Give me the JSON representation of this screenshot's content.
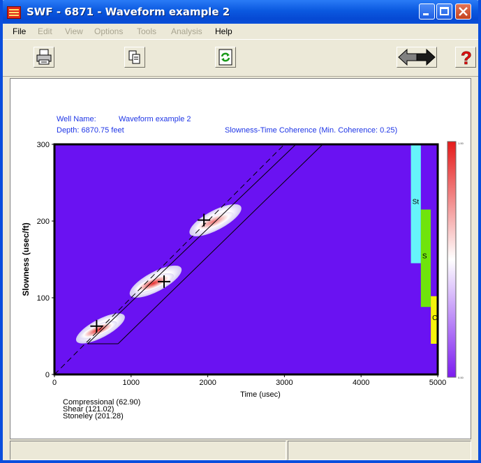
{
  "window": {
    "title": "SWF - 6871 - Waveform example 2"
  },
  "menu": {
    "file": "File",
    "edit": "Edit",
    "view": "View",
    "options": "Options",
    "tools": "Tools",
    "analysis": "Analysis",
    "help": "Help"
  },
  "toolbar": {
    "print_icon": "printer-icon",
    "copy_icon": "copy-icon",
    "refresh_icon": "refresh-icon",
    "back_icon": "arrow-left-icon",
    "forward_icon": "arrow-right-icon",
    "help_icon": "question-mark-icon"
  },
  "header": {
    "well_name_label": "Well Name:",
    "well_name_value": "Waveform example 2",
    "depth": "Depth: 6870.75 feet",
    "plot_title": "Slowness-Time Coherence (Min. Coherence: 0.25)"
  },
  "colors": {
    "plot_background": "#6A12F2",
    "title_text": "#1E35E6",
    "stoneley_bar": "#66F3FA",
    "shear_bar": "#6FE40C",
    "compressional_bar": "#F6F30A",
    "colorbar_top": "#E51A1A",
    "colorbar_mid": "#FFFFFF",
    "colorbar_bottom": "#7C1BF0"
  },
  "chart_data": {
    "type": "heatmap",
    "title": "Slowness-Time Coherence (Min. Coherence: 0.25)",
    "xlabel": "Time (usec)",
    "ylabel": "Slowness (usec/ft)",
    "xlim": [
      0,
      5000
    ],
    "ylim": [
      0,
      300
    ],
    "xticks": [
      "0",
      "1000",
      "2000",
      "3000",
      "4000",
      "5000"
    ],
    "yticks": [
      "0",
      "100",
      "200",
      "300"
    ],
    "picks": [
      {
        "x": 550,
        "y": 62.9
      },
      {
        "x": 1430,
        "y": 121.02
      },
      {
        "x": 1950,
        "y": 201.28
      }
    ],
    "coherence_blobs": [
      {
        "x": 600,
        "y": 60
      },
      {
        "x": 1320,
        "y": 121
      },
      {
        "x": 2100,
        "y": 201
      }
    ],
    "mode_bars": [
      {
        "label": "St",
        "x_range": [
          4650,
          4780
        ],
        "y_range": [
          145,
          300
        ]
      },
      {
        "label": "S",
        "x_range": [
          4780,
          4910
        ],
        "y_range": [
          88,
          215
        ]
      },
      {
        "label": "C",
        "x_range": [
          4910,
          5000
        ],
        "y_range": [
          40,
          102
        ]
      }
    ],
    "colorbar": {
      "max_label": "1.00",
      "min_label": "0.00"
    },
    "legend": [
      "Compressional (62.90)",
      "Shear (121.02)",
      "Stoneley (201.28)"
    ]
  }
}
